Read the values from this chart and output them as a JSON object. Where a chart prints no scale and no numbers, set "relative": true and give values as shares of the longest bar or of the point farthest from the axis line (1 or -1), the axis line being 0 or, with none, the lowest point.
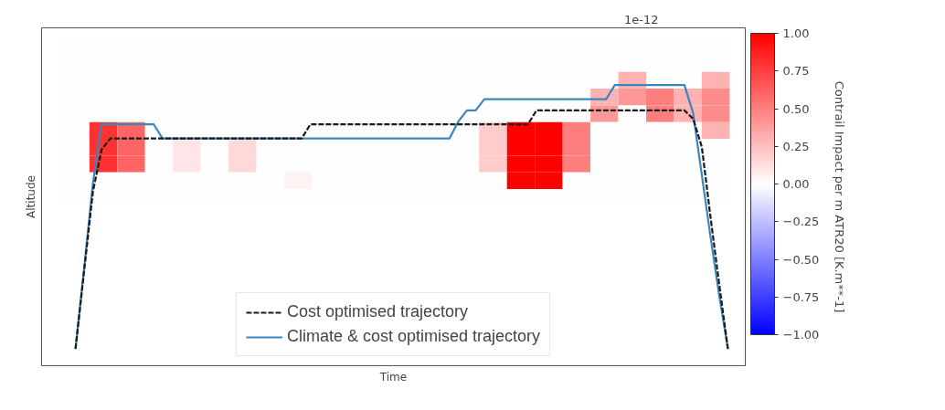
{
  "chart_data": [
    {
      "type": "heatmap",
      "categories": [
        null,
        null,
        null,
        null,
        null,
        null,
        null,
        null,
        null,
        null,
        null,
        null,
        null,
        null,
        null,
        null,
        null,
        null,
        null,
        null,
        null,
        null,
        null,
        null
      ],
      "y_categories": [
        null,
        null,
        null,
        null,
        null,
        null,
        null,
        null,
        null,
        null
      ],
      "cells": [
        [
          0,
          0,
          0,
          0,
          0,
          0,
          0,
          0,
          0,
          0,
          0,
          0,
          0,
          0,
          0,
          0,
          0,
          0,
          0,
          0,
          0,
          0,
          0,
          0
        ],
        [
          0,
          0,
          0,
          0,
          0,
          0,
          0,
          0,
          0,
          0,
          0,
          0,
          0,
          0,
          0,
          0,
          0,
          0,
          0,
          0,
          0,
          0,
          0,
          0
        ],
        [
          0,
          0,
          0,
          0,
          0,
          0,
          0,
          0,
          0,
          0,
          0,
          0,
          0,
          0,
          0,
          0,
          0,
          0,
          0,
          0,
          0.3,
          0,
          0,
          0.3
        ],
        [
          0,
          0,
          0,
          0,
          0,
          0,
          0,
          0,
          0,
          0,
          0,
          0,
          0,
          0,
          0,
          0,
          0,
          0,
          0,
          0.3,
          0.4,
          0.5,
          0.3,
          0.45
        ],
        [
          0,
          0,
          0,
          0,
          0,
          0,
          0,
          0,
          0,
          0,
          0,
          0,
          0,
          0,
          0,
          0,
          0,
          0,
          0,
          0.4,
          0,
          0.5,
          0.3,
          0.45
        ],
        [
          0,
          0.8,
          0.6,
          0,
          0,
          0,
          0,
          0,
          0,
          0,
          0,
          0,
          0,
          0,
          0,
          0.2,
          1,
          1,
          0.5,
          0,
          0,
          0,
          0,
          0.3
        ],
        [
          0,
          0.8,
          0.6,
          0,
          0.1,
          0,
          0.15,
          0,
          0,
          0,
          0,
          0,
          0,
          0,
          0,
          0.2,
          1,
          1,
          0.5,
          0,
          0,
          0,
          0,
          0
        ],
        [
          0,
          0.8,
          0.6,
          0,
          0.1,
          0,
          0.15,
          0,
          0,
          0,
          0,
          0,
          0,
          0,
          0,
          0.2,
          1,
          1,
          0.5,
          0,
          0,
          0,
          0,
          0
        ],
        [
          0,
          0,
          0,
          0,
          0,
          0,
          0,
          0,
          0.05,
          0,
          0,
          0,
          0,
          0,
          0,
          0,
          1,
          1,
          0,
          0,
          0,
          0,
          0,
          0
        ],
        [
          0,
          0,
          0,
          0,
          0,
          0,
          0,
          0,
          0,
          0,
          0,
          0,
          0,
          0,
          0,
          0,
          0,
          0,
          0,
          0,
          0,
          0,
          0,
          0
        ]
      ],
      "clim": [
        -1,
        1
      ],
      "cticks": [
        {
          "value": 1,
          "label": "1.00"
        },
        {
          "value": 0.75,
          "label": "0.75"
        },
        {
          "value": 0.5,
          "label": "0.50"
        },
        {
          "value": 0.25,
          "label": "0.25"
        },
        {
          "value": 0,
          "label": "0.00"
        },
        {
          "value": -0.25,
          "label": "−0.25"
        },
        {
          "value": -0.5,
          "label": "−0.50"
        },
        {
          "value": -0.75,
          "label": "−0.75"
        },
        {
          "value": -1,
          "label": "−1.00"
        }
      ],
      "clabel": "Contrail Impact per m ATR20 [K.m**-1]",
      "annotations": [
        "1e-12"
      ]
    },
    {
      "type": "line",
      "relative": true,
      "xlabel": "Time",
      "ylabel": "Altitude",
      "legend": "bottom",
      "categories": [
        null,
        null,
        null,
        null,
        null,
        null,
        null,
        null,
        null,
        null,
        null,
        null,
        null,
        null,
        null,
        null,
        null,
        null,
        null,
        null,
        null,
        null,
        null,
        null,
        null,
        null,
        null,
        null,
        null,
        null,
        null,
        null,
        null,
        null,
        null,
        null,
        null,
        null,
        null,
        null,
        null,
        null,
        null,
        null,
        null,
        null,
        null,
        null,
        null,
        null,
        null,
        null,
        null,
        null,
        null,
        null,
        null,
        null,
        null,
        null,
        null,
        null,
        null,
        null,
        null,
        null,
        null,
        null,
        null,
        null,
        null,
        null,
        null,
        null,
        null,
        null
      ],
      "series": [
        {
          "name": "Cost optimised trajectory",
          "color": "#1a1a1a",
          "line_style": "dashed",
          "values": [
            0.06,
            0.34,
            0.62,
            0.77,
            0.81,
            0.81,
            0.81,
            0.81,
            0.81,
            0.81,
            0.81,
            0.81,
            0.81,
            0.81,
            0.81,
            0.81,
            0.81,
            0.81,
            0.81,
            0.81,
            0.81,
            0.81,
            0.81,
            0.81,
            0.81,
            0.81,
            0.81,
            0.86,
            0.86,
            0.86,
            0.86,
            0.86,
            0.86,
            0.86,
            0.86,
            0.86,
            0.86,
            0.86,
            0.86,
            0.86,
            0.86,
            0.86,
            0.86,
            0.86,
            0.86,
            0.86,
            0.86,
            0.86,
            0.86,
            0.86,
            0.86,
            0.86,
            0.86,
            0.91,
            0.91,
            0.91,
            0.91,
            0.91,
            0.91,
            0.91,
            0.91,
            0.91,
            0.91,
            0.91,
            0.91,
            0.91,
            0.91,
            0.91,
            0.91,
            0.91,
            0.91,
            0.88,
            0.78,
            0.53,
            0.29,
            0.06
          ]
        },
        {
          "name": "Climate & cost optimised trajectory",
          "color": "#3a86c0",
          "line_style": "solid",
          "values": [
            0.06,
            0.35,
            0.65,
            0.86,
            0.86,
            0.86,
            0.86,
            0.86,
            0.86,
            0.86,
            0.81,
            0.81,
            0.81,
            0.81,
            0.81,
            0.81,
            0.81,
            0.81,
            0.81,
            0.81,
            0.81,
            0.81,
            0.81,
            0.81,
            0.81,
            0.81,
            0.81,
            0.81,
            0.81,
            0.81,
            0.81,
            0.81,
            0.81,
            0.81,
            0.81,
            0.81,
            0.81,
            0.81,
            0.81,
            0.81,
            0.81,
            0.81,
            0.81,
            0.81,
            0.87,
            0.91,
            0.91,
            0.95,
            0.95,
            0.95,
            0.95,
            0.95,
            0.95,
            0.95,
            0.95,
            0.95,
            0.95,
            0.95,
            0.95,
            0.95,
            0.95,
            0.95,
            1,
            1,
            1,
            1,
            1,
            1,
            1,
            1,
            1,
            0.9,
            0.68,
            0.46,
            0.25,
            0.06
          ]
        }
      ]
    }
  ]
}
